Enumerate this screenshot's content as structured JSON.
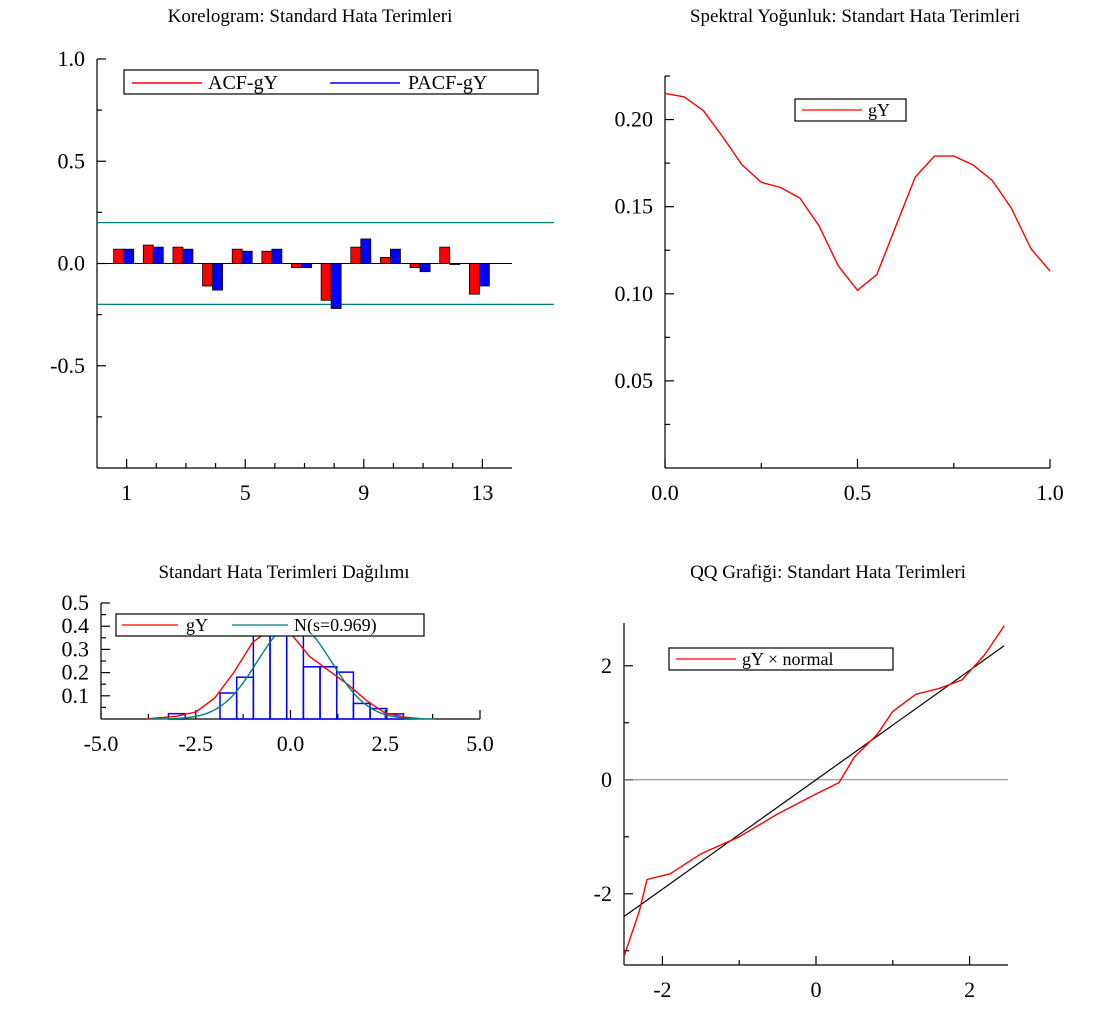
{
  "charts": [
    {
      "id": "acf",
      "type": "bar",
      "title": "Korelogram: Standard Hata Terimleri",
      "xlim": [
        0,
        14
      ],
      "ylim": [
        -1,
        1
      ],
      "x_ticks": [
        {
          "v": 1,
          "label": "1"
        },
        {
          "v": 5,
          "label": "5"
        },
        {
          "v": 9,
          "label": "9"
        },
        {
          "v": 13,
          "label": "13"
        }
      ],
      "y_ticks": [
        {
          "v": 1.0,
          "label": "1.0"
        },
        {
          "v": 0.5,
          "label": "0.5"
        },
        {
          "v": 0.0,
          "label": "0.0"
        },
        {
          "v": -0.5,
          "label": "-0.5"
        }
      ],
      "minor_x": [
        2,
        3,
        4,
        6,
        7,
        8,
        10,
        11,
        12
      ],
      "minor_y": [
        0.75,
        0.25,
        -0.25,
        -0.75
      ],
      "categories": [
        1,
        2,
        3,
        4,
        5,
        6,
        7,
        8,
        9,
        10,
        11,
        12,
        13
      ],
      "series": [
        {
          "name": "ACF-gY",
          "color": "#ff0000",
          "values": [
            0.07,
            0.09,
            0.08,
            -0.11,
            0.07,
            0.06,
            -0.02,
            -0.18,
            0.08,
            0.03,
            -0.02,
            0.08,
            -0.15
          ]
        },
        {
          "name": "PACF-gY",
          "color": "#0000ff",
          "values": [
            0.07,
            0.08,
            0.07,
            -0.13,
            0.06,
            0.07,
            -0.02,
            -0.22,
            0.12,
            0.07,
            -0.04,
            0.0,
            -0.11
          ]
        }
      ],
      "bands": [
        0.2,
        -0.2
      ],
      "band_color": "#008080",
      "legend_position": "top"
    },
    {
      "id": "spec",
      "type": "line",
      "title": "Spektral Yoğunluk: Standart Hata Terimleri",
      "xlim": [
        0,
        1
      ],
      "ylim": [
        0,
        0.225
      ],
      "x_ticks": [
        {
          "v": 0.0,
          "label": "0.0"
        },
        {
          "v": 0.5,
          "label": "0.5"
        },
        {
          "v": 1.0,
          "label": "1.0"
        }
      ],
      "y_ticks": [
        {
          "v": 0.2,
          "label": "0.20"
        },
        {
          "v": 0.15,
          "label": "0.15"
        },
        {
          "v": 0.1,
          "label": "0.10"
        },
        {
          "v": 0.05,
          "label": "0.05"
        }
      ],
      "minor_x": [
        0.25,
        0.75
      ],
      "minor_y": [
        0.025,
        0.075,
        0.125,
        0.175,
        0.225
      ],
      "series": [
        {
          "name": "gY",
          "color": "#ff0000",
          "x": [
            0.0,
            0.05,
            0.1,
            0.15,
            0.2,
            0.25,
            0.3,
            0.35,
            0.4,
            0.45,
            0.5,
            0.55,
            0.6,
            0.65,
            0.7,
            0.75,
            0.8,
            0.85,
            0.9,
            0.95,
            1.0
          ],
          "y": [
            0.215,
            0.213,
            0.205,
            0.19,
            0.174,
            0.164,
            0.161,
            0.155,
            0.139,
            0.116,
            0.102,
            0.111,
            0.139,
            0.167,
            0.179,
            0.179,
            0.174,
            0.165,
            0.149,
            0.126,
            0.113
          ]
        }
      ],
      "legend_position": "top-right"
    },
    {
      "id": "dens",
      "type": "bar",
      "title": "Standart Hata Terimleri Dağılımı",
      "xlim": [
        -5,
        5
      ],
      "ylim": [
        0,
        0.5
      ],
      "x_ticks": [
        {
          "v": -5,
          "label": "-5.0"
        },
        {
          "v": -2.5,
          "label": "-2.5"
        },
        {
          "v": 0,
          "label": "0.0"
        },
        {
          "v": 2.5,
          "label": "2.5"
        },
        {
          "v": 5,
          "label": "5.0"
        }
      ],
      "y_ticks": [
        {
          "v": 0.5,
          "label": "0.5"
        },
        {
          "v": 0.4,
          "label": "0.4"
        },
        {
          "v": 0.3,
          "label": "0.3"
        },
        {
          "v": 0.2,
          "label": "0.2"
        },
        {
          "v": 0.1,
          "label": "0.1"
        }
      ],
      "minor_x": [
        -3.75,
        -1.25,
        1.25,
        3.75
      ],
      "minor_y": [
        0.05,
        0.15,
        0.25,
        0.35,
        0.45
      ],
      "histogram": {
        "color": "#0000ff",
        "bins": [
          {
            "x0": -3.22,
            "x1": -2.78,
            "h": 0.023
          },
          {
            "x0": -2.3,
            "x1": -1.86,
            "h": 0.0
          },
          {
            "x0": -1.86,
            "x1": -1.42,
            "h": 0.112
          },
          {
            "x0": -1.42,
            "x1": -0.98,
            "h": 0.18
          },
          {
            "x0": -0.98,
            "x1": -0.54,
            "h": 0.405
          },
          {
            "x0": -0.54,
            "x1": -0.1,
            "h": 0.45
          },
          {
            "x0": -0.1,
            "x1": 0.34,
            "h": 0.428
          },
          {
            "x0": 0.34,
            "x1": 0.78,
            "h": 0.225
          },
          {
            "x0": 0.78,
            "x1": 1.22,
            "h": 0.225
          },
          {
            "x0": 1.22,
            "x1": 1.66,
            "h": 0.202
          },
          {
            "x0": 1.66,
            "x1": 2.1,
            "h": 0.067
          },
          {
            "x0": 2.1,
            "x1": 2.54,
            "h": 0.045
          },
          {
            "x0": 2.54,
            "x1": 2.98,
            "h": 0.022
          }
        ]
      },
      "series": [
        {
          "name": "gY",
          "color": "#ff0000",
          "x": [
            -3.8,
            -3.0,
            -2.5,
            -2.0,
            -1.5,
            -1.0,
            -0.5,
            -0.3,
            0.0,
            0.5,
            1.0,
            1.5,
            2.0,
            2.5,
            3.0,
            3.5
          ],
          "y": [
            0.0,
            0.012,
            0.03,
            0.09,
            0.2,
            0.33,
            0.39,
            0.4,
            0.37,
            0.27,
            0.21,
            0.15,
            0.08,
            0.025,
            0.008,
            0.0
          ]
        },
        {
          "name": "N(s=0.969)",
          "color": "#008080",
          "normal": {
            "mean": 0.1,
            "sd": 0.969
          }
        }
      ],
      "legend_position": "top"
    },
    {
      "id": "qq",
      "type": "line",
      "title": "QQ Grafiği: Standart Hata Terimleri",
      "xlim": [
        -2.5,
        2.5
      ],
      "ylim": [
        -3.25,
        2.75
      ],
      "x_ticks": [
        {
          "v": -2,
          "label": "-2"
        },
        {
          "v": 0,
          "label": "0"
        },
        {
          "v": 2,
          "label": "2"
        }
      ],
      "y_ticks": [
        {
          "v": 2,
          "label": "2"
        },
        {
          "v": 0,
          "label": "0"
        },
        {
          "v": -2,
          "label": "-2"
        }
      ],
      "minor_x": [
        -1,
        1
      ],
      "minor_y": [
        1,
        -1,
        -3
      ],
      "hline": {
        "y": 0,
        "color": "#808080"
      },
      "reference": {
        "color": "#000000",
        "x": [
          -2.5,
          2.45
        ],
        "y": [
          -2.4,
          2.35
        ]
      },
      "series": [
        {
          "name": "gY × normal",
          "color": "#ff0000",
          "x": [
            -2.5,
            -2.3,
            -2.2,
            -1.9,
            -1.5,
            -1.0,
            -0.5,
            0.0,
            0.3,
            0.5,
            0.8,
            1.0,
            1.3,
            1.6,
            1.9,
            2.2,
            2.45
          ],
          "y": [
            -3.1,
            -2.3,
            -1.75,
            -1.65,
            -1.3,
            -1.0,
            -0.6,
            -0.25,
            -0.05,
            0.4,
            0.8,
            1.2,
            1.5,
            1.6,
            1.75,
            2.2,
            2.7
          ]
        }
      ],
      "legend_position": "top-left"
    }
  ]
}
